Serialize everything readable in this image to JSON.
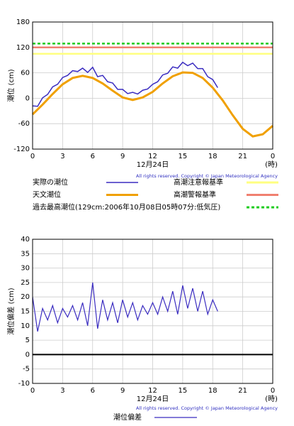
{
  "chart_data": [
    {
      "type": "line",
      "ylabel": "潮位 (cm)",
      "xlabel": "12月24日",
      "xunit": "(時)",
      "copyright": "All rights reserved. Copyright © Japan Meteorological Agency",
      "xlim": [
        0,
        24
      ],
      "xticks": [
        0,
        3,
        6,
        9,
        12,
        15,
        18,
        21,
        {
          "value": 24,
          "label": "0"
        }
      ],
      "ylim": [
        -120,
        180
      ],
      "yticks": [
        -120,
        -60,
        0,
        60,
        120,
        180
      ],
      "grid": true,
      "series": [
        {
          "name": "実際の潮位",
          "color": "#3a2cc0",
          "width": 1.5,
          "x": [
            0,
            0.5,
            1,
            1.5,
            2,
            2.5,
            3,
            3.5,
            4,
            4.5,
            5,
            5.5,
            6,
            6.5,
            7,
            7.5,
            8,
            8.5,
            9,
            9.5,
            10,
            10.5,
            11,
            11.5,
            12,
            12.5,
            13,
            13.5,
            14,
            14.5,
            15,
            15.5,
            16,
            16.5,
            17,
            17.5,
            18,
            18.5
          ],
          "values": [
            -18,
            -19,
            1,
            9,
            27,
            33,
            49,
            54,
            65,
            63,
            71,
            61,
            73,
            51,
            54,
            39,
            36,
            21,
            21,
            11,
            14,
            10,
            19,
            22,
            33,
            39,
            55,
            59,
            74,
            71,
            85,
            77,
            83,
            70,
            70,
            51,
            44,
            25
          ]
        },
        {
          "name": "天文潮位",
          "color": "#f0a000",
          "width": 3,
          "x": [
            0,
            1,
            2,
            3,
            4,
            5,
            6,
            7,
            8,
            9,
            10,
            11,
            12,
            13,
            14,
            15,
            16,
            17,
            18,
            19,
            20,
            21,
            22,
            23,
            24
          ],
          "values": [
            -38,
            -15,
            10,
            33,
            48,
            53,
            48,
            35,
            18,
            2,
            -4,
            2,
            15,
            35,
            52,
            61,
            60,
            48,
            25,
            -5,
            -40,
            -72,
            -90,
            -85,
            -65
          ]
        }
      ],
      "reference_lines": [
        {
          "name": "高潮注意報基準",
          "value": 105,
          "color": "#ffff80",
          "style": "solid"
        },
        {
          "name": "高潮警報基準",
          "value": 120,
          "color": "#f08070",
          "style": "solid"
        },
        {
          "name": "過去最高潮位(129cm:2006年10月08日05時07分:低気圧)",
          "value": 129,
          "color": "#22cc22",
          "style": "dotted"
        }
      ]
    },
    {
      "type": "line",
      "ylabel": "潮位偏差 (cm)",
      "xlabel": "12月24日",
      "xunit": "(時)",
      "copyright": "All rights reserved. Copyright © Japan Meteorological Agency",
      "xlim": [
        0,
        24
      ],
      "xticks": [
        0,
        3,
        6,
        9,
        12,
        15,
        18,
        21,
        {
          "value": 24,
          "label": "0"
        }
      ],
      "ylim": [
        -10,
        40
      ],
      "yticks": [
        -10,
        -5,
        0,
        5,
        10,
        15,
        20,
        25,
        30,
        35,
        40
      ],
      "grid": true,
      "zero_line": true,
      "series": [
        {
          "name": "潮位偏差",
          "color": "#3a2cc0",
          "width": 1.2,
          "x": [
            0,
            0.5,
            1,
            1.5,
            2,
            2.5,
            3,
            3.5,
            4,
            4.5,
            5,
            5.5,
            6,
            6.5,
            7,
            7.5,
            8,
            8.5,
            9,
            9.5,
            10,
            10.5,
            11,
            11.5,
            12,
            12.5,
            13,
            13.5,
            14,
            14.5,
            15,
            15.5,
            16,
            16.5,
            17,
            17.5,
            18,
            18.5
          ],
          "values": [
            20,
            8,
            16,
            12,
            17,
            11,
            16,
            13,
            17,
            12,
            18,
            10,
            25,
            9,
            19,
            12,
            18,
            11,
            19,
            13,
            18,
            12,
            17,
            14,
            18,
            14,
            20,
            15,
            22,
            14,
            24,
            16,
            23,
            15,
            22,
            14,
            19,
            15
          ]
        }
      ],
      "reference_lines": []
    }
  ]
}
